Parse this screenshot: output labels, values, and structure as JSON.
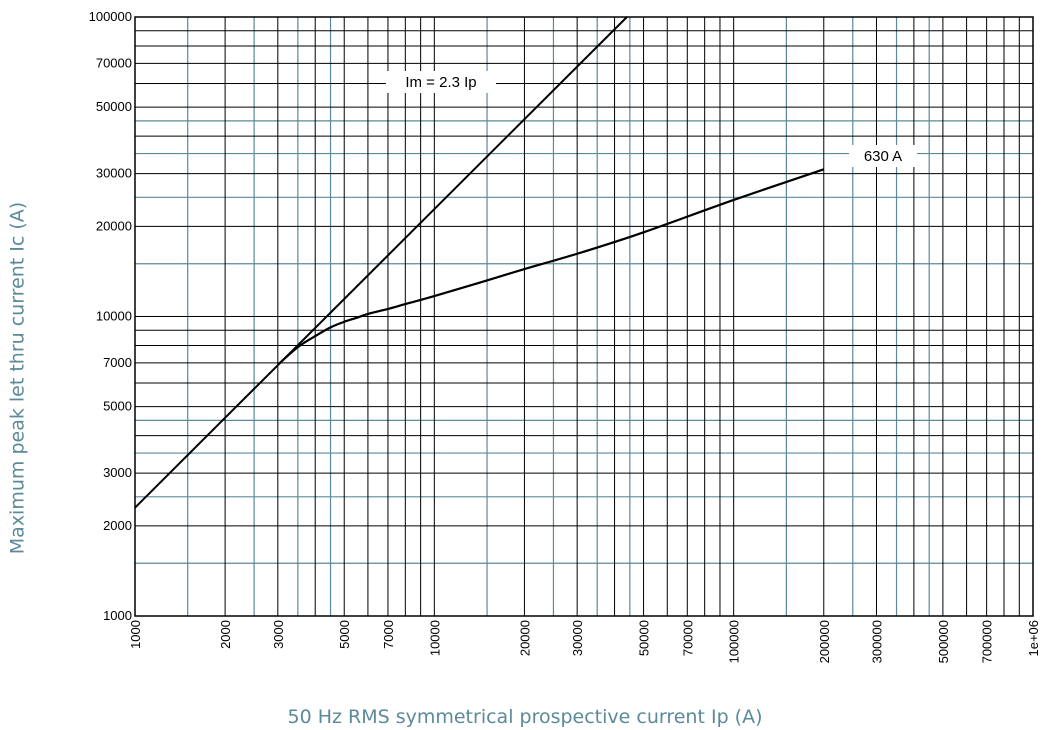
{
  "chart_data": {
    "type": "line",
    "title": "",
    "xlabel": "50 Hz RMS symmetrical prospective current Ip (A)",
    "ylabel": "Maximum peak let thru current Ic (A)",
    "x_scale": "log",
    "y_scale": "log",
    "xlim": [
      1000,
      1000000
    ],
    "ylim": [
      1000,
      100000
    ],
    "x_ticks": [
      1000,
      2000,
      3000,
      5000,
      7000,
      10000,
      20000,
      30000,
      50000,
      70000,
      100000,
      200000,
      300000,
      500000,
      700000,
      1000000
    ],
    "x_tick_labels": [
      "1000",
      "2000",
      "3000",
      "5000",
      "7000",
      "10000",
      "20000",
      "30000",
      "50000",
      "70000",
      "100000",
      "200000",
      "300000",
      "500000",
      "700000",
      "1e+06"
    ],
    "y_ticks": [
      1000,
      2000,
      3000,
      5000,
      7000,
      10000,
      20000,
      30000,
      50000,
      70000,
      100000
    ],
    "y_tick_labels": [
      "1000",
      "2000",
      "3000",
      "5000",
      "7000",
      "10000",
      "20000",
      "30000",
      "50000",
      "70000",
      "100000"
    ],
    "grid": true,
    "grid_major_color": "#000000",
    "grid_minor_color": "#5b8a99",
    "y_grid_major": [
      1000,
      2000,
      3000,
      4000,
      5000,
      6000,
      7000,
      8000,
      9000,
      10000,
      20000,
      30000,
      40000,
      50000,
      60000,
      70000,
      80000,
      90000,
      100000
    ],
    "y_grid_minor": [
      1500,
      2500,
      3500,
      4500,
      15000,
      25000,
      35000,
      45000
    ],
    "x_grid_major": [
      1000,
      2000,
      3000,
      4000,
      5000,
      6000,
      7000,
      8000,
      9000,
      10000,
      20000,
      30000,
      40000,
      50000,
      60000,
      70000,
      80000,
      90000,
      100000,
      200000,
      300000,
      400000,
      500000,
      600000,
      700000,
      800000,
      900000,
      1000000
    ],
    "x_grid_minor": [
      1500,
      2500,
      3500,
      4500,
      15000,
      25000,
      35000,
      45000,
      150000,
      250000,
      350000,
      450000
    ],
    "series": [
      {
        "name": "Im = 2.3 Ip",
        "color": "#000000",
        "x": [
          1000,
          44000
        ],
        "y": [
          2300,
          100000
        ]
      },
      {
        "name": "630 A",
        "color": "#000000",
        "x": [
          3000,
          3500,
          4000,
          4500,
          5000,
          5500,
          6000,
          7000,
          8000,
          10000,
          15000,
          20000,
          30000,
          50000,
          100000,
          200000
        ],
        "y": [
          6900,
          7900,
          8600,
          9200,
          9600,
          9900,
          10200,
          10600,
          11000,
          11700,
          13200,
          14400,
          16200,
          19100,
          24500,
          31000
        ]
      }
    ]
  }
}
